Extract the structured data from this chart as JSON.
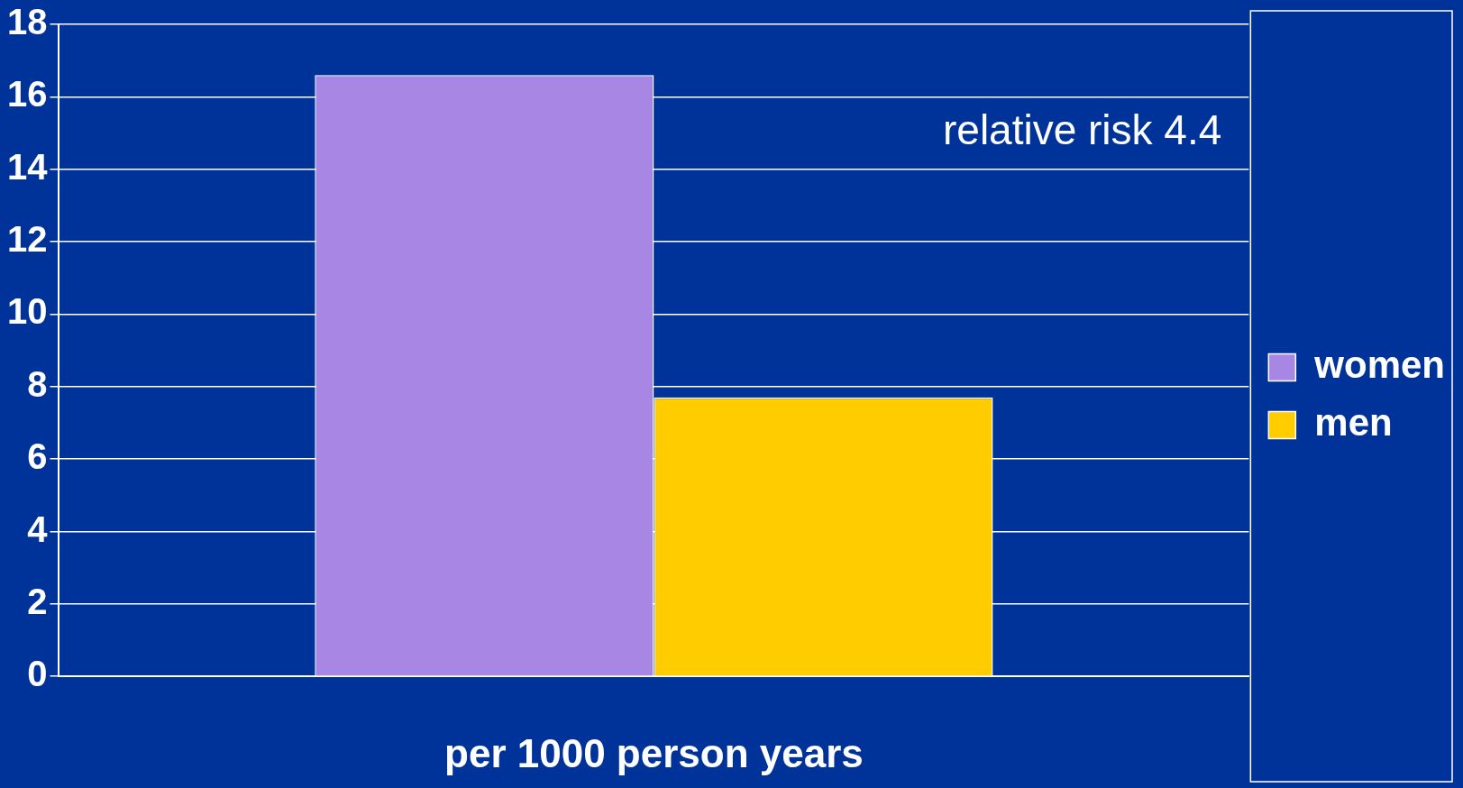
{
  "chart_data": {
    "type": "bar",
    "categories": [
      null
    ],
    "series": [
      {
        "name": "women",
        "color": "#a787e3",
        "values": [
          16.6
        ]
      },
      {
        "name": "men",
        "color": "#ffcc00",
        "values": [
          7.7
        ]
      }
    ],
    "xlabel": "per 1000 person years",
    "ylim": [
      0,
      18
    ],
    "yticks": [
      0,
      2,
      4,
      6,
      8,
      10,
      12,
      14,
      16,
      18
    ],
    "grid": "y",
    "legend": "right",
    "annotations": [
      "relative risk 4.4"
    ]
  }
}
